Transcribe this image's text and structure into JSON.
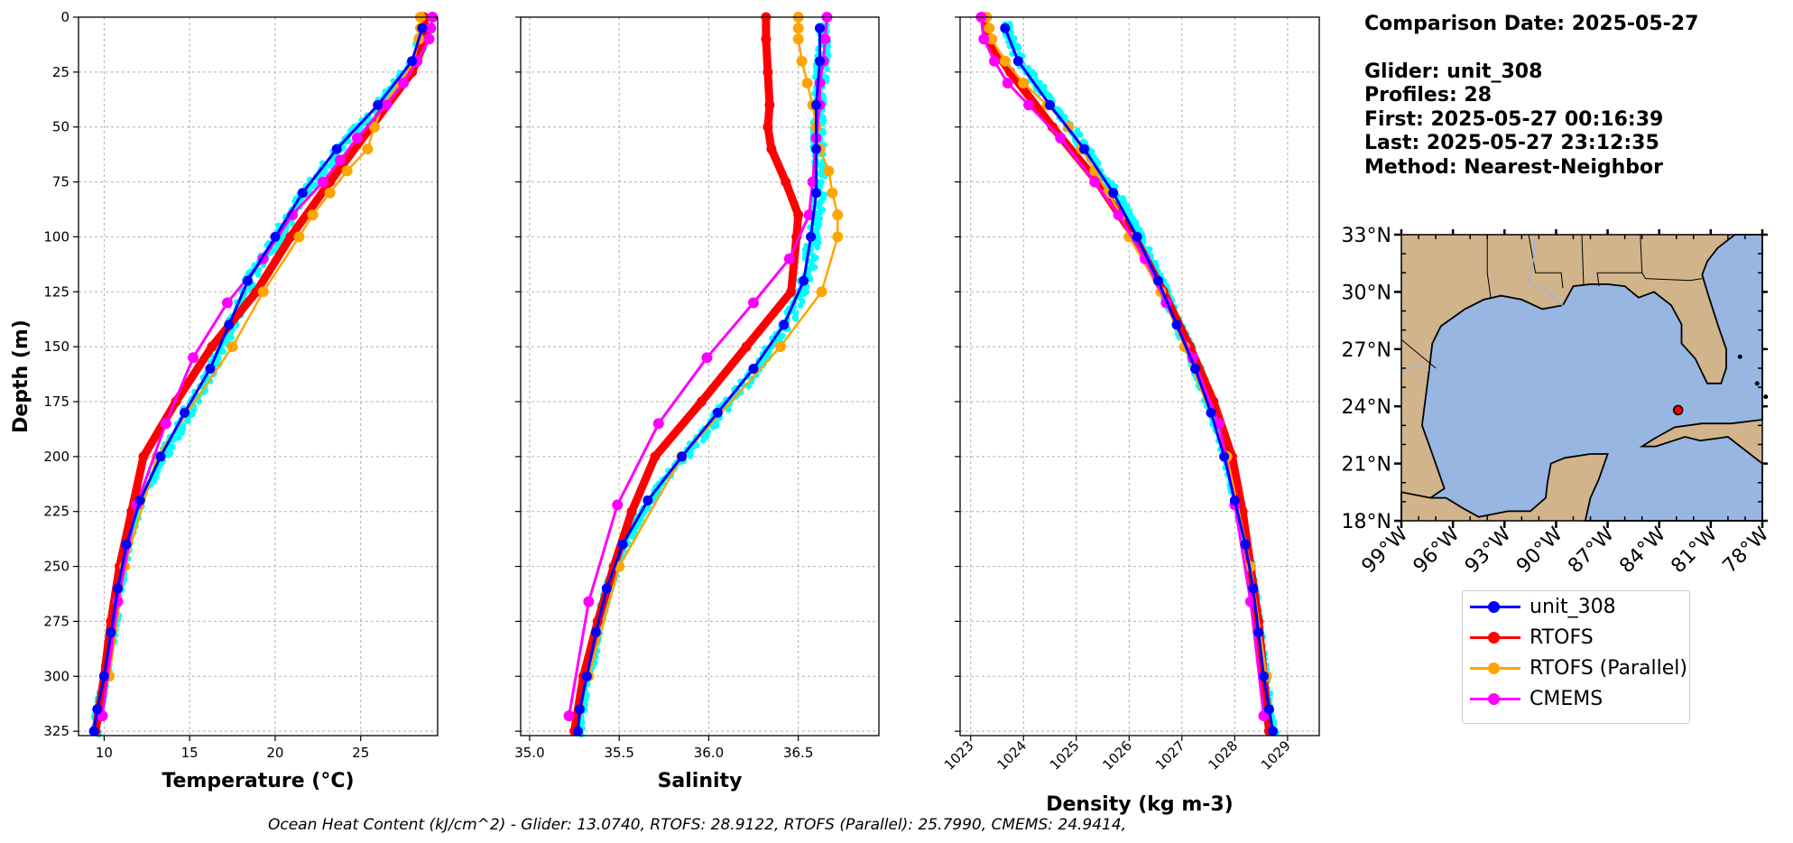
{
  "info": {
    "comparison_date": "Comparison Date: 2025-05-27",
    "glider": "Glider: unit_308",
    "profiles": "Profiles: 28",
    "first": "First: 2025-05-27 00:16:39",
    "last": "Last: 2025-05-27 23:12:35",
    "method": "Method: Nearest-Neighbor"
  },
  "footer": "Ocean Heat Content (kJ/cm^2) - Glider: 13.0740,  RTOFS: 28.9122,  RTOFS (Parallel): 25.7990,  CMEMS: 24.9414,",
  "legend": [
    {
      "label": "unit_308",
      "color": "#0000ff"
    },
    {
      "label": "RTOFS",
      "color": "#ff0000"
    },
    {
      "label": "RTOFS (Parallel)",
      "color": "#ffa500"
    },
    {
      "label": "CMEMS",
      "color": "#ff00ff"
    }
  ],
  "colors": {
    "glider_raw": "#00ffff",
    "glider_mean": "#0000ff",
    "rtofs": "#ff0000",
    "rtofs_parallel": "#ffa500",
    "cmems": "#ff00ff",
    "land": "#d2b48c",
    "ocean": "#97b6e1"
  },
  "chart_data": [
    {
      "type": "line",
      "xlabel": "Temperature (°C)",
      "ylabel": "Depth (m)",
      "xlim": [
        8.5,
        29.5
      ],
      "ylim": [
        327,
        0
      ],
      "xticks": [
        10,
        15,
        20,
        25
      ],
      "yticks": [
        0,
        25,
        50,
        75,
        100,
        125,
        150,
        175,
        200,
        225,
        250,
        275,
        300,
        325
      ],
      "grid": true,
      "series": [
        {
          "name": "unit_308",
          "depth": [
            5,
            20,
            40,
            60,
            80,
            100,
            120,
            140,
            160,
            180,
            200,
            220,
            240,
            260,
            280,
            300,
            315,
            325
          ],
          "values": [
            28.6,
            28.0,
            26.0,
            23.6,
            21.6,
            20.0,
            18.4,
            17.3,
            16.2,
            14.7,
            13.3,
            12.1,
            11.3,
            10.8,
            10.4,
            10.0,
            9.6,
            9.4
          ]
        },
        {
          "name": "RTOFS",
          "depth": [
            0,
            10,
            25,
            50,
            75,
            100,
            125,
            150,
            175,
            200,
            225,
            250,
            275,
            300,
            325
          ],
          "values": [
            28.7,
            28.8,
            28.0,
            25.6,
            23.2,
            20.9,
            18.9,
            16.3,
            14.2,
            12.3,
            11.6,
            10.9,
            10.4,
            10.0,
            9.5
          ]
        },
        {
          "name": "RTOFS (Parallel)",
          "depth": [
            0,
            5,
            10,
            20,
            30,
            40,
            50,
            60,
            70,
            80,
            90,
            100,
            125,
            150,
            200,
            250,
            300
          ],
          "values": [
            28.5,
            28.5,
            28.4,
            28.1,
            27.3,
            26.3,
            25.8,
            25.4,
            24.2,
            23.2,
            22.2,
            21.4,
            19.3,
            17.5,
            13.1,
            11.2,
            10.3
          ]
        },
        {
          "name": "CMEMS",
          "depth": [
            0,
            5,
            10,
            20,
            30,
            40,
            55,
            65,
            75,
            90,
            110,
            130,
            155,
            185,
            222,
            266,
            318
          ],
          "values": [
            29.2,
            29.1,
            29.0,
            28.3,
            27.5,
            26.5,
            24.8,
            23.8,
            22.8,
            21.0,
            19.3,
            17.2,
            15.2,
            13.6,
            11.9,
            10.8,
            9.9
          ]
        }
      ]
    },
    {
      "type": "line",
      "xlabel": "Salinity",
      "xlim": [
        34.95,
        36.95
      ],
      "ylim": [
        327,
        0
      ],
      "xticks": [
        35.0,
        35.5,
        36.0,
        36.5
      ],
      "grid": true,
      "series": [
        {
          "name": "unit_308",
          "depth": [
            5,
            20,
            40,
            60,
            80,
            100,
            120,
            140,
            160,
            180,
            200,
            220,
            240,
            260,
            280,
            300,
            315,
            325
          ],
          "values": [
            36.62,
            36.62,
            36.6,
            36.6,
            36.6,
            36.57,
            36.53,
            36.42,
            36.25,
            36.05,
            35.85,
            35.66,
            35.52,
            35.43,
            35.37,
            35.32,
            35.28,
            35.27
          ]
        },
        {
          "name": "RTOFS",
          "depth": [
            0,
            10,
            25,
            40,
            50,
            60,
            75,
            90,
            100,
            125,
            150,
            175,
            200,
            225,
            250,
            275,
            300,
            325
          ],
          "values": [
            36.32,
            36.32,
            36.33,
            36.34,
            36.33,
            36.35,
            36.43,
            36.5,
            36.49,
            36.46,
            36.21,
            35.96,
            35.7,
            35.57,
            35.47,
            35.38,
            35.3,
            35.25
          ]
        },
        {
          "name": "RTOFS (Parallel)",
          "depth": [
            0,
            5,
            10,
            20,
            30,
            40,
            50,
            60,
            70,
            80,
            90,
            100,
            125,
            150,
            200,
            250,
            300
          ],
          "values": [
            36.5,
            36.5,
            36.5,
            36.52,
            36.55,
            36.58,
            36.6,
            36.62,
            36.67,
            36.69,
            36.72,
            36.72,
            36.63,
            36.4,
            35.85,
            35.5,
            35.33
          ]
        },
        {
          "name": "CMEMS",
          "depth": [
            0,
            10,
            20,
            30,
            40,
            55,
            75,
            90,
            110,
            130,
            155,
            185,
            222,
            266,
            318
          ],
          "values": [
            36.66,
            36.65,
            36.64,
            36.62,
            36.62,
            36.6,
            36.58,
            36.56,
            36.45,
            36.25,
            35.99,
            35.72,
            35.49,
            35.33,
            35.22
          ]
        }
      ]
    },
    {
      "type": "line",
      "xlabel": "Density (kg m-3)",
      "xlim": [
        1022.8,
        1029.6
      ],
      "ylim": [
        327,
        0
      ],
      "xticks": [
        1023,
        1024,
        1025,
        1026,
        1027,
        1028,
        1029
      ],
      "grid": true,
      "series": [
        {
          "name": "unit_308",
          "depth": [
            5,
            20,
            40,
            60,
            80,
            100,
            120,
            140,
            160,
            180,
            200,
            220,
            240,
            260,
            280,
            300,
            315,
            325
          ],
          "values": [
            1023.65,
            1023.9,
            1024.5,
            1025.15,
            1025.7,
            1026.15,
            1026.55,
            1026.9,
            1027.25,
            1027.55,
            1027.8,
            1028.0,
            1028.2,
            1028.35,
            1028.45,
            1028.55,
            1028.65,
            1028.72
          ]
        },
        {
          "name": "RTOFS",
          "depth": [
            0,
            10,
            25,
            50,
            75,
            100,
            125,
            150,
            175,
            200,
            225,
            250,
            275,
            300,
            325
          ],
          "values": [
            1023.25,
            1023.3,
            1023.75,
            1024.55,
            1025.4,
            1026.1,
            1026.65,
            1027.15,
            1027.6,
            1027.95,
            1028.15,
            1028.3,
            1028.45,
            1028.55,
            1028.65
          ]
        },
        {
          "name": "RTOFS (Parallel)",
          "depth": [
            0,
            5,
            10,
            20,
            30,
            40,
            50,
            60,
            70,
            80,
            90,
            100,
            125,
            150,
            200,
            250,
            300
          ],
          "values": [
            1023.3,
            1023.35,
            1023.4,
            1023.65,
            1024.0,
            1024.45,
            1024.85,
            1025.1,
            1025.35,
            1025.6,
            1025.85,
            1026.0,
            1026.6,
            1027.05,
            1027.85,
            1028.3,
            1028.6
          ]
        },
        {
          "name": "CMEMS",
          "depth": [
            0,
            10,
            20,
            30,
            40,
            55,
            75,
            90,
            110,
            130,
            155,
            185,
            222,
            266,
            318
          ],
          "values": [
            1023.2,
            1023.25,
            1023.45,
            1023.7,
            1024.1,
            1024.7,
            1025.35,
            1025.8,
            1026.3,
            1026.7,
            1027.2,
            1027.7,
            1028.0,
            1028.3,
            1028.55
          ]
        }
      ]
    }
  ],
  "map": {
    "lon_range": [
      -99,
      -78
    ],
    "lat_range": [
      18,
      33
    ],
    "lon_ticks": [
      "99°W",
      "96°W",
      "93°W",
      "90°W",
      "87°W",
      "84°W",
      "81°W",
      "78°W"
    ],
    "lat_ticks": [
      "33°N",
      "30°N",
      "27°N",
      "24°N",
      "21°N",
      "18°N"
    ],
    "glider_position": {
      "lon": -82.9,
      "lat": 23.8
    }
  }
}
